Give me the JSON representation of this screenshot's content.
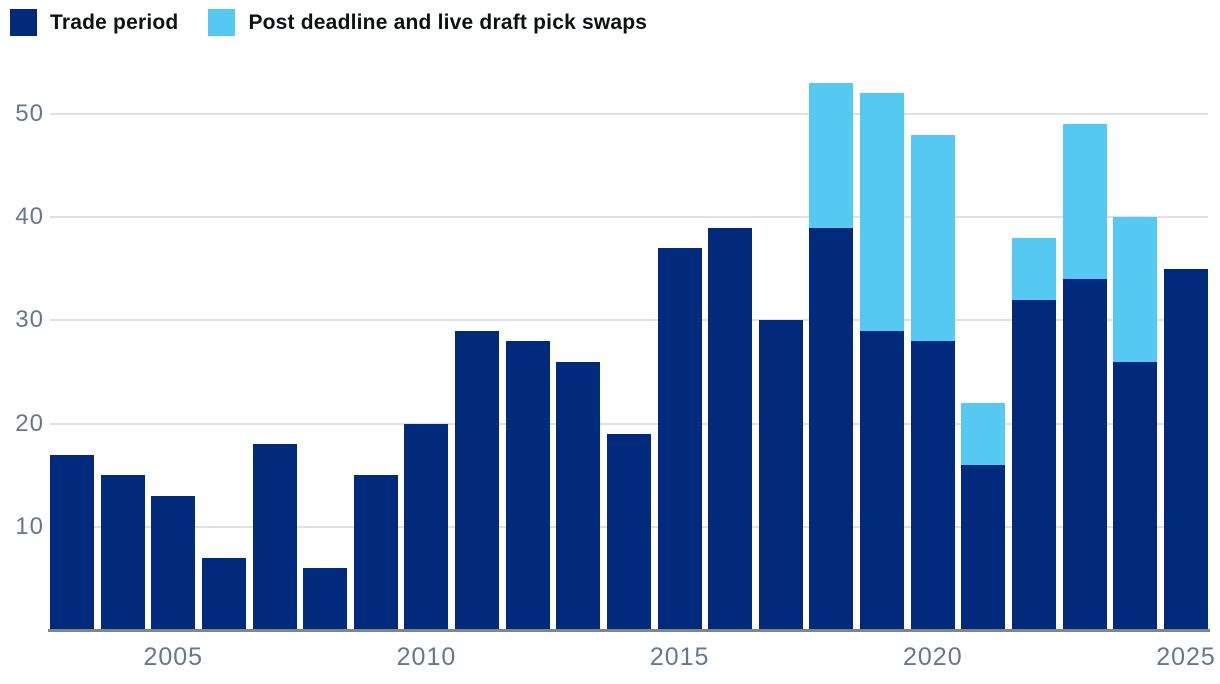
{
  "legend": [
    {
      "label": "Trade period",
      "color": "#01297c"
    },
    {
      "label": "Post deadline and live draft pick swaps",
      "color": "#55c9f2"
    }
  ],
  "colors": {
    "trade_period": "#01297c",
    "post_deadline": "#55c9f2",
    "gridline": "#dde2e9",
    "axis_line": "#7b8694",
    "tick_text": "#66788e"
  },
  "chart_data": {
    "type": "bar",
    "stacked": true,
    "title": "",
    "xlabel": "",
    "ylabel": "",
    "categories": [
      2003,
      2004,
      2005,
      2006,
      2007,
      2008,
      2009,
      2010,
      2011,
      2012,
      2013,
      2014,
      2015,
      2016,
      2017,
      2018,
      2019,
      2020,
      2021,
      2022,
      2023,
      2024,
      2025
    ],
    "series": [
      {
        "name": "Trade period",
        "color": "#01297c",
        "values": [
          17,
          15,
          13,
          7,
          18,
          6,
          15,
          20,
          29,
          28,
          26,
          19,
          37,
          39,
          30,
          39,
          29,
          28,
          16,
          32,
          34,
          26,
          35
        ]
      },
      {
        "name": "Post deadline and live draft pick swaps",
        "color": "#55c9f2",
        "values": [
          0,
          0,
          0,
          0,
          0,
          0,
          0,
          0,
          0,
          0,
          0,
          0,
          0,
          0,
          0,
          14,
          23,
          20,
          6,
          6,
          15,
          14,
          0
        ]
      }
    ],
    "totals": [
      17,
      15,
      13,
      7,
      18,
      6,
      15,
      20,
      29,
      28,
      26,
      19,
      37,
      39,
      30,
      53,
      52,
      48,
      22,
      38,
      49,
      40,
      35
    ],
    "y_ticks": [
      10,
      20,
      30,
      40,
      50
    ],
    "x_tick_labels": [
      "2005",
      "2010",
      "2015",
      "2020",
      "2025"
    ],
    "ylim": [
      0,
      54
    ],
    "grid": "horizontal",
    "legend_position": "top-left"
  }
}
